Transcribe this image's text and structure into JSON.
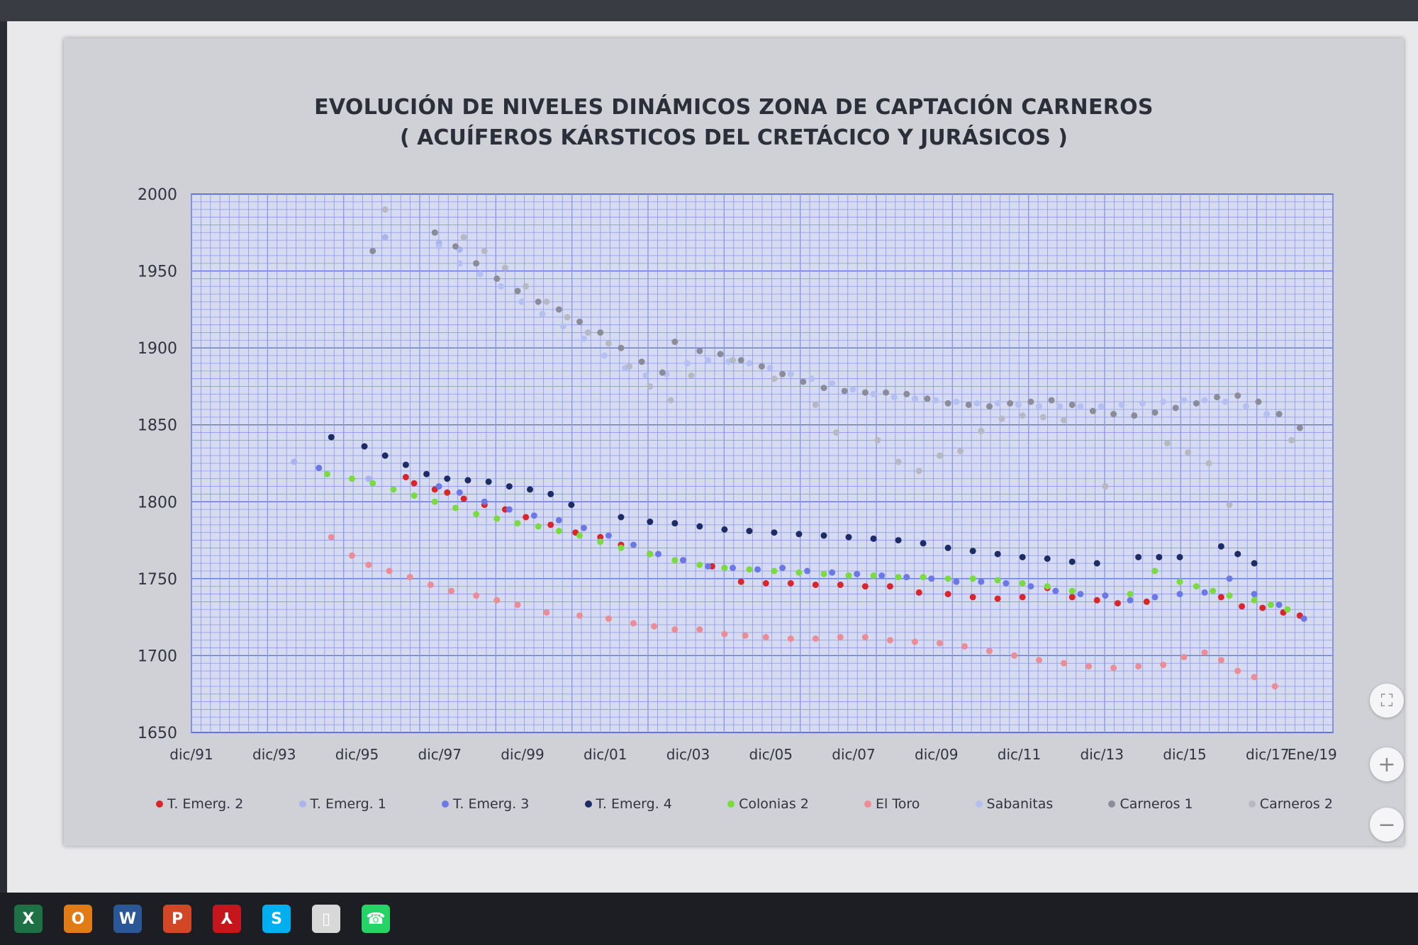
{
  "title_line1": "EVOLUCIÓN DE NIVELES DINÁMICOS ZONA DE CAPTACIÓN CARNEROS",
  "title_line2": "( ACUÍFEROS KÁRSTICOS DEL CRETÁCICO Y JURÁSICOS )",
  "chart_data": {
    "type": "scatter",
    "title": "EVOLUCIÓN DE NIVELES DINÁMICOS ZONA DE CAPTACIÓN CARNEROS",
    "subtitle": "( ACUÍFEROS KÁRSTICOS DEL CRETÁCICO Y JURÁSICOS )",
    "xlabel": "",
    "ylabel": "",
    "x_tick_labels": [
      "dic/91",
      "dic/93",
      "dic/95",
      "dic/97",
      "dic/99",
      "dic/01",
      "dic/03",
      "dic/05",
      "dic/07",
      "dic/09",
      "dic/11",
      "dic/13",
      "dic/15",
      "dic/17",
      "Ene/19"
    ],
    "x_tick_values": [
      1991.92,
      1993.92,
      1995.92,
      1997.92,
      1999.92,
      2001.92,
      2003.92,
      2005.92,
      2007.92,
      2009.92,
      2011.92,
      2013.92,
      2015.92,
      2017.92,
      2019.0
    ],
    "y_tick_labels": [
      "2000",
      "1950",
      "1900",
      "1850",
      "1800",
      "1750",
      "1700",
      "1650"
    ],
    "xlim": [
      1991.92,
      2019.5
    ],
    "ylim": [
      1650,
      2000
    ],
    "grid": true,
    "legend_position": "bottom",
    "series": [
      {
        "name": "T. Emerg. 2",
        "color": "#d8262c",
        "x": [
          1997.1,
          1997.3,
          1997.8,
          1998.1,
          1998.5,
          1999.0,
          1999.5,
          2000.0,
          2000.6,
          2001.2,
          2001.8,
          2002.3,
          2003.0,
          2003.8,
          2004.5,
          2005.2,
          2005.8,
          2006.4,
          2007.0,
          2007.6,
          2008.2,
          2008.8,
          2009.5,
          2010.2,
          2010.8,
          2011.4,
          2012.0,
          2012.6,
          2013.2,
          2013.8,
          2014.3,
          2015.0,
          2016.8,
          2017.3,
          2017.8,
          2018.3,
          2018.7
        ],
        "y": [
          1816,
          1812,
          1808,
          1806,
          1802,
          1798,
          1795,
          1790,
          1785,
          1780,
          1777,
          1772,
          1766,
          1762,
          1758,
          1748,
          1747,
          1747,
          1746,
          1746,
          1745,
          1745,
          1741,
          1740,
          1738,
          1737,
          1738,
          1744,
          1738,
          1736,
          1734,
          1735,
          1738,
          1732,
          1731,
          1728,
          1726
        ]
      },
      {
        "name": "T. Emerg. 1",
        "color": "#a9b4ee",
        "x": [
          1994.4,
          1996.2,
          1996.6,
          1997.9,
          1998.4
        ],
        "y": [
          1826,
          1815,
          1972,
          1968,
          1964
        ]
      },
      {
        "name": "T. Emerg. 3",
        "color": "#6b78e6",
        "x": [
          1995.0,
          1997.9,
          1998.4,
          1999.0,
          1999.6,
          2000.2,
          2000.8,
          2001.4,
          2002.0,
          2002.6,
          2003.2,
          2003.8,
          2004.4,
          2005.0,
          2005.6,
          2006.2,
          2006.8,
          2007.4,
          2008.0,
          2008.6,
          2009.2,
          2009.8,
          2010.4,
          2011.0,
          2011.6,
          2012.2,
          2012.8,
          2013.4,
          2014.0,
          2014.6,
          2015.2,
          2015.8,
          2016.4,
          2017.0,
          2017.6,
          2018.2,
          2018.8
        ],
        "y": [
          1822,
          1810,
          1806,
          1800,
          1795,
          1791,
          1788,
          1783,
          1778,
          1772,
          1766,
          1762,
          1758,
          1757,
          1756,
          1757,
          1755,
          1754,
          1753,
          1752,
          1751,
          1750,
          1748,
          1748,
          1747,
          1745,
          1742,
          1740,
          1739,
          1736,
          1738,
          1740,
          1741,
          1750,
          1740,
          1733,
          1724
        ]
      },
      {
        "name": "T. Emerg. 4",
        "color": "#1e2c66",
        "x": [
          1995.3,
          1996.1,
          1996.6,
          1997.1,
          1997.6,
          1998.1,
          1998.6,
          1999.1,
          1999.6,
          2000.1,
          2000.6,
          2001.1,
          2002.3,
          2003.0,
          2003.6,
          2004.2,
          2004.8,
          2005.4,
          2006.0,
          2006.6,
          2007.2,
          2007.8,
          2008.4,
          2009.0,
          2009.6,
          2010.2,
          2010.8,
          2011.4,
          2012.0,
          2012.6,
          2013.2,
          2013.8,
          2014.8,
          2015.3,
          2015.8,
          2016.8,
          2017.2,
          2017.6
        ],
        "y": [
          1842,
          1836,
          1830,
          1824,
          1818,
          1815,
          1814,
          1813,
          1810,
          1808,
          1805,
          1798,
          1790,
          1787,
          1786,
          1784,
          1782,
          1781,
          1780,
          1779,
          1778,
          1777,
          1776,
          1775,
          1773,
          1770,
          1768,
          1766,
          1764,
          1763,
          1761,
          1760,
          1764,
          1764,
          1764,
          1771,
          1766,
          1760
        ]
      },
      {
        "name": "Colonias 2",
        "color": "#79db3e",
        "x": [
          1995.2,
          1995.8,
          1996.3,
          1996.8,
          1997.3,
          1997.8,
          1998.3,
          1998.8,
          1999.3,
          1999.8,
          2000.3,
          2000.8,
          2001.3,
          2001.8,
          2002.3,
          2003.0,
          2003.6,
          2004.2,
          2004.8,
          2005.4,
          2006.0,
          2006.6,
          2007.2,
          2007.8,
          2008.4,
          2009.0,
          2009.6,
          2010.2,
          2010.8,
          2011.4,
          2012.0,
          2012.6,
          2013.2,
          2014.6,
          2015.2,
          2015.8,
          2016.2,
          2016.6,
          2017.0,
          2017.6,
          2018.0,
          2018.4
        ],
        "y": [
          1818,
          1815,
          1812,
          1808,
          1804,
          1800,
          1796,
          1792,
          1789,
          1786,
          1784,
          1781,
          1778,
          1774,
          1770,
          1766,
          1762,
          1759,
          1757,
          1756,
          1755,
          1754,
          1753,
          1752,
          1752,
          1751,
          1751,
          1750,
          1750,
          1749,
          1747,
          1745,
          1742,
          1740,
          1755,
          1748,
          1745,
          1742,
          1739,
          1736,
          1733,
          1730
        ]
      },
      {
        "name": "El Toro",
        "color": "#ec8c96",
        "x": [
          1995.3,
          1995.8,
          1996.2,
          1996.7,
          1997.2,
          1997.7,
          1998.2,
          1998.8,
          1999.3,
          1999.8,
          2000.5,
          2001.3,
          2002.0,
          2002.6,
          2003.1,
          2003.6,
          2004.2,
          2004.8,
          2005.3,
          2005.8,
          2006.4,
          2007.0,
          2007.6,
          2008.2,
          2008.8,
          2009.4,
          2010.0,
          2010.6,
          2011.2,
          2011.8,
          2012.4,
          2013.0,
          2013.6,
          2014.2,
          2014.8,
          2015.4,
          2015.9,
          2016.4,
          2016.8,
          2017.2,
          2017.6,
          2018.1
        ],
        "y": [
          1777,
          1765,
          1759,
          1755,
          1751,
          1746,
          1742,
          1739,
          1736,
          1733,
          1728,
          1726,
          1724,
          1721,
          1719,
          1717,
          1717,
          1714,
          1713,
          1712,
          1711,
          1711,
          1712,
          1712,
          1710,
          1709,
          1708,
          1706,
          1703,
          1700,
          1697,
          1695,
          1693,
          1692,
          1693,
          1694,
          1699,
          1702,
          1697,
          1690,
          1686,
          1680
        ]
      },
      {
        "name": "Sabanitas",
        "color": "#b4bff2",
        "x": [
          1997.9,
          1998.4,
          1998.9,
          1999.4,
          1999.9,
          2000.4,
          2000.9,
          2001.4,
          2001.9,
          2002.4,
          2002.9,
          2003.4,
          2003.9,
          2004.4,
          2004.9,
          2005.4,
          2005.9,
          2006.4,
          2006.9,
          2007.4,
          2007.9,
          2008.4,
          2008.9,
          2009.4,
          2009.9,
          2010.4,
          2010.9,
          2011.4,
          2011.9,
          2012.4,
          2012.9,
          2013.4,
          2013.9,
          2014.4,
          2014.9,
          2015.4,
          2015.9,
          2016.4,
          2016.9,
          2017.4,
          2017.9
        ],
        "y": [
          1966,
          1955,
          1948,
          1940,
          1930,
          1922,
          1914,
          1906,
          1895,
          1887,
          1882,
          1883,
          1890,
          1892,
          1891,
          1890,
          1887,
          1883,
          1880,
          1877,
          1873,
          1870,
          1868,
          1867,
          1866,
          1865,
          1864,
          1864,
          1863,
          1862,
          1862,
          1862,
          1862,
          1863,
          1864,
          1865,
          1866,
          1866,
          1865,
          1862,
          1857
        ]
      },
      {
        "name": "Carneros 1",
        "color": "#8a8d99",
        "x": [
          1996.3,
          1997.8,
          1998.3,
          1998.8,
          1999.3,
          1999.8,
          2000.3,
          2000.8,
          2001.3,
          2001.8,
          2002.3,
          2002.8,
          2003.3,
          2003.6,
          2004.2,
          2004.7,
          2005.2,
          2005.7,
          2006.2,
          2006.7,
          2007.2,
          2007.7,
          2008.2,
          2008.7,
          2009.2,
          2009.7,
          2010.2,
          2010.7,
          2011.2,
          2011.7,
          2012.2,
          2012.7,
          2013.2,
          2013.7,
          2014.2,
          2014.7,
          2015.2,
          2015.7,
          2016.2,
          2016.7,
          2017.2,
          2017.7,
          2018.2,
          2018.7
        ],
        "y": [
          1963,
          1975,
          1966,
          1955,
          1945,
          1937,
          1930,
          1925,
          1917,
          1910,
          1900,
          1891,
          1884,
          1904,
          1898,
          1896,
          1892,
          1888,
          1883,
          1878,
          1874,
          1872,
          1871,
          1871,
          1870,
          1867,
          1864,
          1863,
          1862,
          1864,
          1865,
          1866,
          1863,
          1859,
          1857,
          1856,
          1858,
          1861,
          1864,
          1868,
          1869,
          1865,
          1857,
          1848
        ]
      },
      {
        "name": "Carneros 2",
        "color": "#b7b9c2",
        "x": [
          1996.6,
          1998.5,
          1999.0,
          1999.5,
          2000.0,
          2000.5,
          2001.0,
          2001.5,
          2002.0,
          2002.5,
          2003.0,
          2003.5,
          2004.0,
          2005.0,
          2006.0,
          2007.0,
          2007.5,
          2008.5,
          2009.0,
          2009.5,
          2010.0,
          2010.5,
          2011.0,
          2011.5,
          2012.0,
          2012.5,
          2013.0,
          2014.0,
          2015.5,
          2016.0,
          2016.5,
          2017.0,
          2018.5
        ],
        "y": [
          1990,
          1972,
          1963,
          1952,
          1940,
          1930,
          1920,
          1910,
          1903,
          1888,
          1875,
          1866,
          1882,
          1892,
          1880,
          1863,
          1845,
          1840,
          1826,
          1820,
          1830,
          1833,
          1846,
          1854,
          1856,
          1855,
          1853,
          1810,
          1838,
          1832,
          1825,
          1798,
          1840
        ]
      }
    ]
  },
  "viewer_controls": {
    "fit_icon": "⛶",
    "zoom_in_icon": "+",
    "zoom_out_icon": "−"
  },
  "taskbar_icons": [
    {
      "name": "excel-icon",
      "glyph": "X",
      "color": "#1e7145"
    },
    {
      "name": "outlook-icon",
      "glyph": "O",
      "color": "#e07b16"
    },
    {
      "name": "word-icon",
      "glyph": "W",
      "color": "#2b5797"
    },
    {
      "name": "powerpoint-icon",
      "glyph": "P",
      "color": "#d24726"
    },
    {
      "name": "acrobat-icon",
      "glyph": "⅄",
      "color": "#c4161c"
    },
    {
      "name": "skype-icon",
      "glyph": "S",
      "color": "#00aff0"
    },
    {
      "name": "file-icon",
      "glyph": "▯",
      "color": "#d8d8d8"
    },
    {
      "name": "whatsapp-icon",
      "glyph": "☎",
      "color": "#25d366"
    }
  ]
}
